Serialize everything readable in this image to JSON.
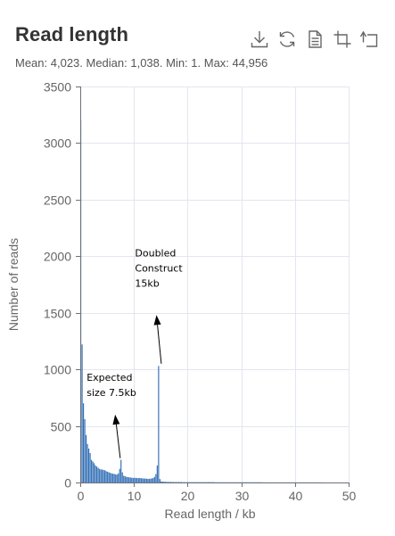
{
  "header": {
    "title": "Read length",
    "subtitle": "Mean: 4,023. Median: 1,038. Min: 1. Max: 44,956"
  },
  "toolbox": [
    {
      "name": "download-icon",
      "label": "Save as image"
    },
    {
      "name": "refresh-icon",
      "label": "Restore"
    },
    {
      "name": "data-view-icon",
      "label": "Data view"
    },
    {
      "name": "crop-icon",
      "label": "Zoom"
    },
    {
      "name": "zoom-reset-icon",
      "label": "Zoom reset"
    }
  ],
  "colors": {
    "bar": "#2f6db5",
    "grid": "#e3e6ef",
    "axis": "#6e7079",
    "icon": "#666666"
  },
  "chart_data": {
    "type": "bar",
    "title": "Read length",
    "xlabel": "Read length / kb",
    "ylabel": "Number of reads",
    "xlim": [
      0,
      50
    ],
    "ylim": [
      0,
      3500
    ],
    "x_ticks": [
      0,
      10,
      20,
      30,
      40,
      50
    ],
    "y_ticks": [
      0,
      500,
      1000,
      1500,
      2000,
      2500,
      3000,
      3500
    ],
    "grid": true,
    "bin_width_kb": 0.25,
    "x": [
      0.125,
      0.375,
      0.625,
      0.875,
      1.125,
      1.375,
      1.625,
      1.875,
      2.125,
      2.375,
      2.625,
      2.875,
      3.125,
      3.375,
      3.625,
      3.875,
      4.125,
      4.375,
      4.625,
      4.875,
      5.125,
      5.375,
      5.625,
      5.875,
      6.125,
      6.375,
      6.625,
      6.875,
      7.125,
      7.375,
      7.625,
      7.875,
      8.125,
      8.375,
      8.625,
      8.875,
      9.125,
      9.375,
      9.625,
      9.875,
      10.125,
      10.375,
      10.625,
      10.875,
      11.125,
      11.375,
      11.625,
      11.875,
      12.125,
      12.375,
      12.625,
      12.875,
      13.125,
      13.375,
      13.625,
      13.875,
      14.125,
      14.375,
      14.625,
      14.875,
      15.125,
      15.375,
      15.625,
      15.875,
      16.125,
      16.375,
      16.625,
      16.875,
      17.125,
      17.375,
      17.625,
      17.875,
      18.125,
      18.375,
      18.625,
      18.875,
      19.125,
      19.375,
      19.625,
      19.875,
      20.125,
      20.375,
      20.625,
      20.875,
      21.125,
      21.375,
      21.625,
      21.875,
      22.125,
      22.375,
      22.625,
      22.875,
      23.125,
      23.375,
      23.625,
      23.875,
      24.125,
      24.375,
      24.625,
      24.875,
      25.125,
      25.375,
      25.625,
      25.875,
      26.125,
      26.375,
      26.625,
      26.875,
      27.125,
      27.375,
      27.625,
      27.875,
      28.125,
      28.375,
      28.625,
      28.875,
      29.125,
      29.375,
      29.625,
      29.875,
      30.125,
      30.375,
      30.625,
      30.875,
      31.125,
      31.375,
      31.625,
      31.875,
      32.125,
      32.375,
      32.625,
      32.875,
      33.125,
      33.375,
      33.625,
      33.875,
      34.125,
      34.375,
      34.625,
      34.875,
      35.125,
      35.375,
      35.625,
      35.875,
      36.125,
      36.375,
      36.625,
      36.875,
      37.125,
      37.375,
      37.625,
      37.875,
      38.125,
      38.375,
      38.625,
      38.875,
      39.125,
      39.375,
      39.625,
      39.875,
      40.125,
      40.375,
      40.625,
      40.875,
      41.125,
      41.375,
      41.625,
      41.875,
      42.125,
      42.375,
      42.625,
      42.875,
      43.125,
      43.375,
      43.625,
      43.875,
      44.125,
      44.375,
      44.625,
      44.875
    ],
    "values": [
      3200,
      1220,
      700,
      560,
      420,
      340,
      300,
      260,
      200,
      185,
      170,
      150,
      140,
      130,
      120,
      115,
      115,
      110,
      108,
      100,
      95,
      90,
      85,
      80,
      78,
      75,
      72,
      70,
      80,
      120,
      200,
      90,
      60,
      55,
      50,
      48,
      45,
      45,
      42,
      40,
      42,
      40,
      40,
      38,
      40,
      38,
      36,
      35,
      35,
      34,
      32,
      32,
      34,
      36,
      40,
      50,
      75,
      150,
      1030,
      30,
      10,
      8,
      7,
      6,
      6,
      5,
      5,
      5,
      5,
      4,
      4,
      4,
      4,
      4,
      4,
      4,
      3,
      3,
      3,
      3,
      3,
      3,
      3,
      3,
      3,
      3,
      3,
      3,
      3,
      3,
      3,
      3,
      3,
      3,
      3,
      3,
      3,
      3,
      3,
      3,
      2,
      2,
      2,
      2,
      2,
      2,
      2,
      2,
      2,
      2,
      2,
      2,
      2,
      2,
      2,
      2,
      2,
      2,
      2,
      2,
      2,
      2,
      2,
      2,
      2,
      2,
      2,
      2,
      2,
      2,
      2,
      2,
      2,
      2,
      2,
      2,
      1,
      1,
      1,
      1,
      1,
      1,
      1,
      1,
      1,
      1,
      1,
      1,
      1,
      1,
      1,
      1,
      1,
      1,
      1,
      1,
      1,
      1,
      1,
      1,
      1,
      1,
      1,
      1,
      1,
      1,
      1,
      1,
      1,
      1,
      1,
      1,
      1,
      1,
      1,
      1,
      1,
      1,
      1,
      1
    ],
    "annotations": [
      {
        "id": "expected",
        "lines": [
          "Expected",
          "size 7.5kb"
        ],
        "text_at": [
          1.2,
          900
        ],
        "arrow_tail": [
          6.5,
          600
        ],
        "arrow_head": [
          7.45,
          215
        ]
      },
      {
        "id": "doubled",
        "lines": [
          "Doubled",
          "Construct",
          "15kb"
        ],
        "text_at": [
          10.2,
          2000
        ],
        "arrow_tail": [
          14.2,
          1480
        ],
        "arrow_head": [
          15.1,
          1050
        ]
      }
    ]
  }
}
